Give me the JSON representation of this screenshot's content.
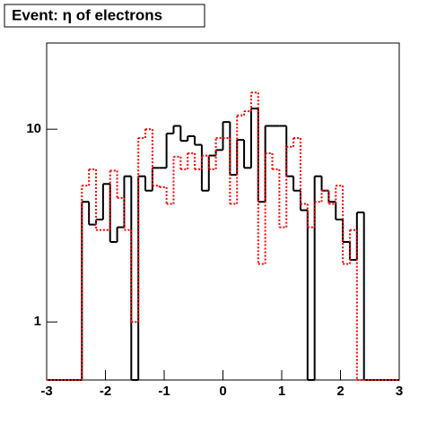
{
  "chart_data": {
    "type": "histogram",
    "title": "Event: η of electrons",
    "bins": [
      -3,
      -2.88,
      -2.76,
      -2.64,
      -2.52,
      -2.4,
      -2.28,
      -2.16,
      -2.04,
      -1.92,
      -1.8,
      -1.68,
      -1.56,
      -1.44,
      -1.32,
      -1.2,
      -1.08,
      -0.96,
      -0.84,
      -0.72,
      -0.6,
      -0.48,
      -0.36,
      -0.24,
      -0.12,
      0,
      0.12,
      0.24,
      0.36,
      0.48,
      0.6,
      0.72,
      0.84,
      0.96,
      1.08,
      1.2,
      1.32,
      1.44,
      1.56,
      1.68,
      1.8,
      1.92,
      2.04,
      2.16,
      2.28,
      2.4,
      2.52,
      2.64,
      2.76,
      2.88,
      3
    ],
    "series": [
      {
        "color": "#000000",
        "dash": false,
        "values": [
          0,
          0,
          0,
          0,
          0,
          4.2,
          3.2,
          3.4,
          5.2,
          2.6,
          3.1,
          5.7,
          0,
          5.7,
          4.8,
          6.3,
          6.3,
          9.5,
          10.4,
          8.7,
          9.2,
          8.3,
          4.8,
          7.3,
          7.8,
          10.9,
          5.8,
          8.8,
          6.3,
          12.8,
          4.2,
          10.4,
          10.4,
          10.4,
          5.7,
          4.8,
          3.8,
          0,
          5.7,
          4.8,
          4.2,
          3.4,
          2.6,
          2.1,
          3.7,
          0,
          0,
          0,
          0,
          0
        ]
      },
      {
        "color": "#ff0000",
        "dash": true,
        "values": [
          0,
          0,
          0,
          0,
          0,
          5.1,
          6.2,
          3.0,
          3.0,
          6.1,
          4.4,
          3.0,
          1.0,
          9.0,
          10.0,
          5.1,
          5.0,
          4.1,
          7.2,
          6.2,
          7.5,
          6.2,
          7.3,
          6.2,
          9.0,
          9.0,
          4.1,
          11.8,
          12.4,
          15.5,
          2.0,
          7.5,
          6.2,
          3.1,
          8.1,
          9.0,
          4.1,
          3.1,
          4.2,
          4.8,
          4.1,
          5.1,
          2.0,
          3.0,
          0,
          0,
          0,
          0,
          0,
          0
        ]
      }
    ],
    "xlim": [
      -3,
      3
    ],
    "xticks": [
      -3,
      -2,
      -1,
      0,
      1,
      2,
      3
    ],
    "ylim": [
      0.5,
      28
    ],
    "yticks": [
      1,
      10
    ],
    "log_y": true
  }
}
